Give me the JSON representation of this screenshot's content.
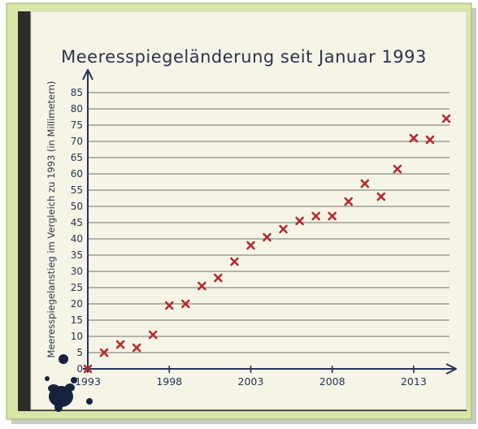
{
  "chart_data": {
    "type": "scatter",
    "title": "Meeresspiegeländerung seit Januar 1993",
    "xlabel": "",
    "ylabel": "Meeresspiegelanstieg im Vergleich zu 1993 (in Millimetern)",
    "xlim": [
      1993,
      2015.2
    ],
    "ylim": [
      0,
      88
    ],
    "x_ticks": [
      1993,
      1998,
      2003,
      2008,
      2013
    ],
    "y_ticks": [
      0,
      5,
      10,
      15,
      20,
      25,
      30,
      35,
      40,
      45,
      50,
      55,
      60,
      65,
      70,
      75,
      80,
      85
    ],
    "grid": true,
    "marker": "x",
    "colors": {
      "marker": "#b8282c",
      "axis": "#26335a",
      "grid": "#8a8a86",
      "paper": "#f6f4e6",
      "cover": "#d8e6a8",
      "ink_blot": "#15233f"
    },
    "points": [
      {
        "x": 1993,
        "y": 0
      },
      {
        "x": 1994,
        "y": 5
      },
      {
        "x": 1995,
        "y": 7.5
      },
      {
        "x": 1996,
        "y": 6.5
      },
      {
        "x": 1997,
        "y": 10.5
      },
      {
        "x": 1998,
        "y": 19.5
      },
      {
        "x": 1999,
        "y": 20
      },
      {
        "x": 2000,
        "y": 25.5
      },
      {
        "x": 2001,
        "y": 28
      },
      {
        "x": 2002,
        "y": 33
      },
      {
        "x": 2003,
        "y": 38
      },
      {
        "x": 2004,
        "y": 40.5
      },
      {
        "x": 2005,
        "y": 43
      },
      {
        "x": 2006,
        "y": 45.5
      },
      {
        "x": 2007,
        "y": 47
      },
      {
        "x": 2008,
        "y": 47
      },
      {
        "x": 2009,
        "y": 51.5
      },
      {
        "x": 2010,
        "y": 57
      },
      {
        "x": 2011,
        "y": 53
      },
      {
        "x": 2012,
        "y": 61.5
      },
      {
        "x": 2013,
        "y": 71
      },
      {
        "x": 2014,
        "y": 70.5
      },
      {
        "x": 2015,
        "y": 77
      }
    ]
  }
}
